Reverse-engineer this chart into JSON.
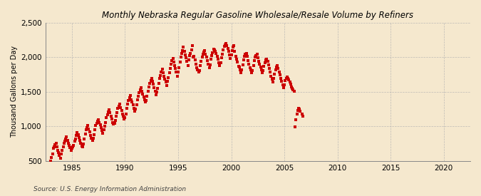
{
  "title": "Monthly Nebraska Regular Gasoline Wholesale/Resale Volume by Refiners",
  "ylabel": "Thousand Gallons per Day",
  "source": "Source: U.S. Energy Information Administration",
  "background_color": "#f5e8ce",
  "plot_bg_color": "#f5e8ce",
  "marker_color": "#cc0000",
  "marker_size": 2.2,
  "ylim": [
    500,
    2500
  ],
  "yticks": [
    500,
    1000,
    1500,
    2000,
    2500
  ],
  "xlim_start": 1982.5,
  "xlim_end": 2022.5,
  "xticks": [
    1985,
    1990,
    1995,
    2000,
    2005,
    2010,
    2015,
    2020
  ],
  "data": {
    "dates": [
      1983.0,
      1983.08,
      1983.17,
      1983.25,
      1983.33,
      1983.42,
      1983.5,
      1983.58,
      1983.67,
      1983.75,
      1983.83,
      1983.92,
      1984.0,
      1984.08,
      1984.17,
      1984.25,
      1984.33,
      1984.42,
      1984.5,
      1984.58,
      1984.67,
      1984.75,
      1984.83,
      1984.92,
      1985.0,
      1985.08,
      1985.17,
      1985.25,
      1985.33,
      1985.42,
      1985.5,
      1985.58,
      1985.67,
      1985.75,
      1985.83,
      1985.92,
      1986.0,
      1986.08,
      1986.17,
      1986.25,
      1986.33,
      1986.42,
      1986.5,
      1986.58,
      1986.67,
      1986.75,
      1986.83,
      1986.92,
      1987.0,
      1987.08,
      1987.17,
      1987.25,
      1987.33,
      1987.42,
      1987.5,
      1987.58,
      1987.67,
      1987.75,
      1987.83,
      1987.92,
      1988.0,
      1988.08,
      1988.17,
      1988.25,
      1988.33,
      1988.42,
      1988.5,
      1988.58,
      1988.67,
      1988.75,
      1988.83,
      1988.92,
      1989.0,
      1989.08,
      1989.17,
      1989.25,
      1989.33,
      1989.42,
      1989.5,
      1989.58,
      1989.67,
      1989.75,
      1989.83,
      1989.92,
      1990.0,
      1990.08,
      1990.17,
      1990.25,
      1990.33,
      1990.42,
      1990.5,
      1990.58,
      1990.67,
      1990.75,
      1990.83,
      1990.92,
      1991.0,
      1991.08,
      1991.17,
      1991.25,
      1991.33,
      1991.42,
      1991.5,
      1991.58,
      1991.67,
      1991.75,
      1991.83,
      1991.92,
      1992.0,
      1992.08,
      1992.17,
      1992.25,
      1992.33,
      1992.42,
      1992.5,
      1992.58,
      1992.67,
      1992.75,
      1992.83,
      1992.92,
      1993.0,
      1993.08,
      1993.17,
      1993.25,
      1993.33,
      1993.42,
      1993.5,
      1993.58,
      1993.67,
      1993.75,
      1993.83,
      1993.92,
      1994.0,
      1994.08,
      1994.17,
      1994.25,
      1994.33,
      1994.42,
      1994.5,
      1994.58,
      1994.67,
      1994.75,
      1994.83,
      1994.92,
      1995.0,
      1995.08,
      1995.17,
      1995.25,
      1995.33,
      1995.42,
      1995.5,
      1995.58,
      1995.67,
      1995.75,
      1995.83,
      1995.92,
      1996.0,
      1996.08,
      1996.17,
      1996.25,
      1996.33,
      1996.42,
      1996.5,
      1996.58,
      1996.67,
      1996.75,
      1996.83,
      1996.92,
      1997.0,
      1997.08,
      1997.17,
      1997.25,
      1997.33,
      1997.42,
      1997.5,
      1997.58,
      1997.67,
      1997.75,
      1997.83,
      1997.92,
      1998.0,
      1998.08,
      1998.17,
      1998.25,
      1998.33,
      1998.42,
      1998.5,
      1998.58,
      1998.67,
      1998.75,
      1998.83,
      1998.92,
      1999.0,
      1999.08,
      1999.17,
      1999.25,
      1999.33,
      1999.42,
      1999.5,
      1999.58,
      1999.67,
      1999.75,
      1999.83,
      1999.92,
      2000.0,
      2000.08,
      2000.17,
      2000.25,
      2000.33,
      2000.42,
      2000.5,
      2000.58,
      2000.67,
      2000.75,
      2000.83,
      2000.92,
      2001.0,
      2001.08,
      2001.17,
      2001.25,
      2001.33,
      2001.42,
      2001.5,
      2001.58,
      2001.67,
      2001.75,
      2001.83,
      2001.92,
      2002.0,
      2002.08,
      2002.17,
      2002.25,
      2002.33,
      2002.42,
      2002.5,
      2002.58,
      2002.67,
      2002.75,
      2002.83,
      2002.92,
      2003.0,
      2003.08,
      2003.17,
      2003.25,
      2003.33,
      2003.42,
      2003.5,
      2003.58,
      2003.67,
      2003.75,
      2003.83,
      2003.92,
      2004.0,
      2004.08,
      2004.17,
      2004.25,
      2004.33,
      2004.42,
      2004.5,
      2004.58,
      2004.67,
      2004.75,
      2004.83,
      2004.92,
      2005.0,
      2005.08,
      2005.17,
      2005.25,
      2005.33,
      2005.42,
      2005.5,
      2005.58,
      2005.67,
      2005.75,
      2005.83,
      2005.92,
      2006.0,
      2006.08,
      2006.17,
      2006.25,
      2006.33,
      2006.42,
      2006.5,
      2006.67,
      2006.75
    ],
    "values": [
      500,
      550,
      600,
      680,
      710,
      740,
      760,
      700,
      650,
      620,
      580,
      540,
      600,
      650,
      700,
      760,
      790,
      820,
      850,
      800,
      760,
      730,
      690,
      650,
      680,
      700,
      730,
      790,
      820,
      870,
      910,
      880,
      840,
      800,
      760,
      720,
      700,
      750,
      820,
      890,
      950,
      980,
      1010,
      960,
      920,
      870,
      830,
      800,
      830,
      880,
      950,
      1010,
      1050,
      1080,
      1100,
      1060,
      1020,
      980,
      940,
      900,
      950,
      1000,
      1060,
      1130,
      1170,
      1210,
      1240,
      1200,
      1150,
      1110,
      1060,
      1030,
      1050,
      1090,
      1150,
      1200,
      1260,
      1290,
      1320,
      1270,
      1230,
      1180,
      1150,
      1110,
      1130,
      1180,
      1260,
      1320,
      1380,
      1420,
      1450,
      1390,
      1350,
      1310,
      1260,
      1220,
      1250,
      1310,
      1390,
      1440,
      1490,
      1530,
      1560,
      1510,
      1470,
      1430,
      1390,
      1350,
      1380,
      1440,
      1510,
      1570,
      1620,
      1660,
      1700,
      1650,
      1610,
      1560,
      1510,
      1460,
      1500,
      1550,
      1620,
      1690,
      1740,
      1790,
      1830,
      1780,
      1730,
      1680,
      1640,
      1590,
      1650,
      1710,
      1780,
      1840,
      1900,
      1950,
      1980,
      1930,
      1880,
      1840,
      1790,
      1730,
      1790,
      1850,
      1930,
      2000,
      2060,
      2100,
      2150,
      2090,
      2040,
      1990,
      1940,
      1880,
      1960,
      2020,
      2060,
      2110,
      2170,
      2000,
      2010,
      1960,
      1900,
      1850,
      1820,
      1790,
      1810,
      1880,
      1940,
      2000,
      2050,
      2080,
      2100,
      2050,
      2000,
      1950,
      1900,
      1850,
      1890,
      1970,
      2020,
      2070,
      2120,
      2110,
      2090,
      2060,
      2010,
      1970,
      1920,
      1880,
      1920,
      1990,
      2050,
      2110,
      2160,
      2180,
      2200,
      2170,
      2130,
      2090,
      2040,
      1980,
      2040,
      2100,
      2150,
      2170,
      2090,
      2010,
      1970,
      1930,
      1870,
      1860,
      1820,
      1780,
      1820,
      1890,
      1960,
      2010,
      2050,
      2060,
      2010,
      1950,
      1900,
      1850,
      1820,
      1780,
      1810,
      1880,
      1950,
      2000,
      2030,
      2050,
      1990,
      1940,
      1900,
      1860,
      1820,
      1780,
      1810,
      1870,
      1920,
      1960,
      1970,
      1940,
      1890,
      1840,
      1790,
      1730,
      1680,
      1640,
      1690,
      1760,
      1820,
      1860,
      1880,
      1840,
      1790,
      1750,
      1700,
      1650,
      1600,
      1560,
      1600,
      1660,
      1700,
      1720,
      1700,
      1670,
      1640,
      1610,
      1570,
      1550,
      1530,
      1510,
      990,
      1100,
      1180,
      1230,
      1260,
      1250,
      1220,
      1180,
      1150
    ]
  }
}
